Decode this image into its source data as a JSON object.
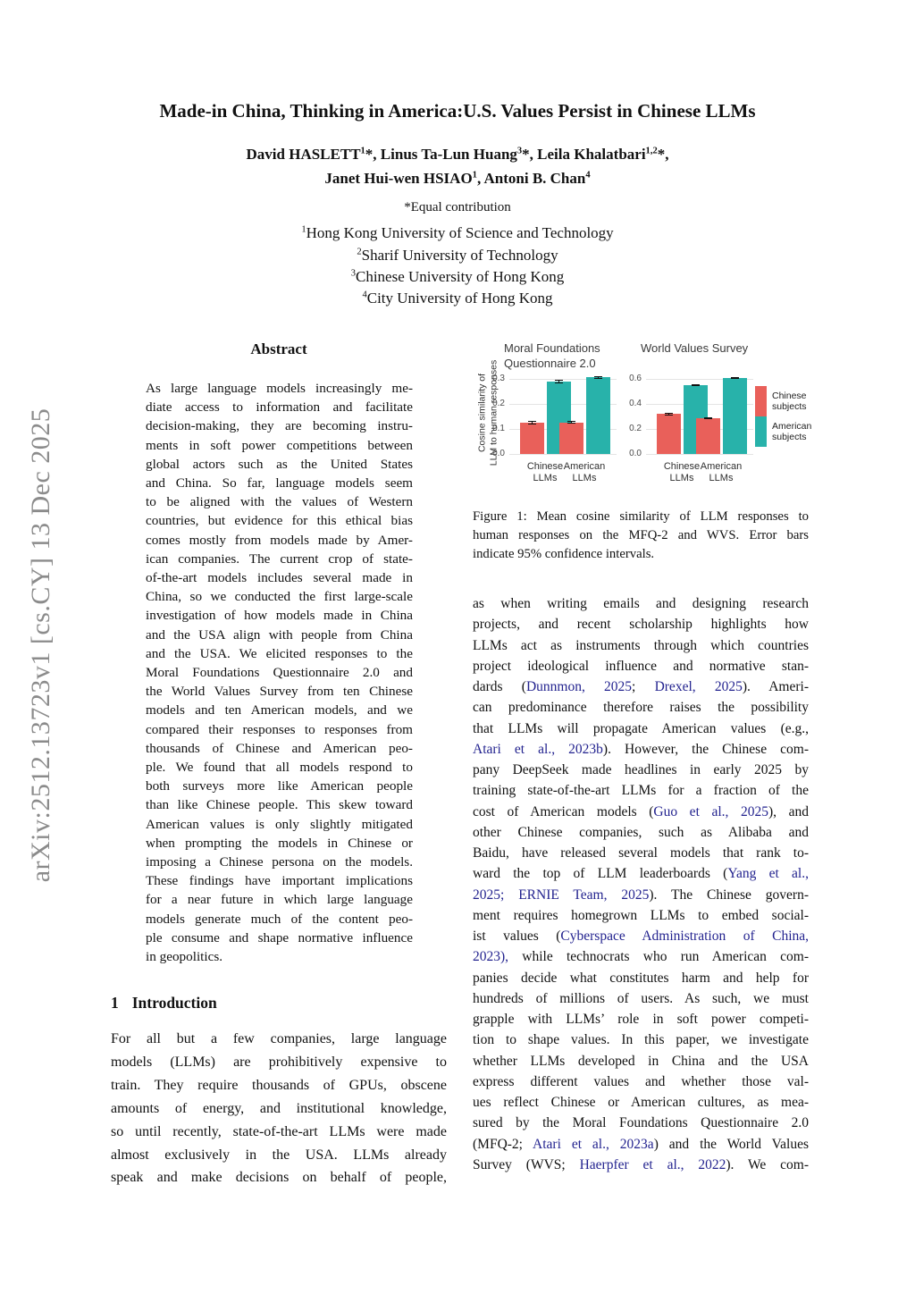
{
  "watermark": "arXiv:2512.13723v1  [cs.CY]  13 Dec 2025",
  "colors": {
    "citation": "#23238f",
    "bar_red": "#e9605a",
    "bar_teal": "#28b2aa"
  },
  "header": {
    "title": "Made-in China, Thinking in America:U.S. Values Persist in Chinese LLMs",
    "author_line1": [
      {
        "t": "David HASLETT"
      },
      {
        "t": "1",
        "sup": true
      },
      {
        "t": "*, Linus Ta-Lun Huang"
      },
      {
        "t": "3",
        "sup": true
      },
      {
        "t": "*, Leila Khalatbari"
      },
      {
        "t": "1,2",
        "sup": true
      },
      {
        "t": "*,"
      }
    ],
    "author_line2": [
      {
        "t": "Janet Hui-wen HSIAO"
      },
      {
        "t": "1",
        "sup": true
      },
      {
        "t": ", Antoni B. Chan"
      },
      {
        "t": "4",
        "sup": true
      }
    ],
    "equal_contribution": "*Equal contribution",
    "affiliations": [
      [
        {
          "t": "1",
          "sup": true
        },
        {
          "t": "Hong Kong University of Science and Technology"
        }
      ],
      [
        {
          "t": "2",
          "sup": true
        },
        {
          "t": "Sharif University of Technology"
        }
      ],
      [
        {
          "t": "3",
          "sup": true
        },
        {
          "t": "Chinese University of Hong Kong"
        }
      ],
      [
        {
          "t": "4",
          "sup": true
        },
        {
          "t": "City University of Hong Kong"
        }
      ]
    ]
  },
  "abstract": {
    "heading": "Abstract",
    "lines": [
      "As large language models increasingly me-",
      "diate access to information and facilitate",
      "decision-making, they are becoming instru-",
      "ments in soft power competitions between",
      "global actors such as the United States",
      "and China.  So far, language models seem",
      "to be aligned with the values of Western",
      "countries, but evidence for this ethical bias",
      "comes mostly from models made by Amer-",
      "ican companies.  The current crop of state-",
      "of-the-art models includes several made in",
      "China, so we conducted the first large-scale",
      "investigation of how models made in China",
      "and the USA align with people from China",
      "and the USA. We elicited responses to the",
      "Moral Foundations Questionnaire 2.0 and",
      "the World Values Survey from ten Chinese",
      "models and ten American models, and we",
      "compared their responses to responses from",
      "thousands of Chinese and American peo-",
      "ple.  We found that all models respond to",
      "both surveys more like American people",
      "than like Chinese people. This skew toward",
      "American values is only slightly mitigated",
      "when prompting the models in Chinese or",
      "imposing a Chinese persona on the models.",
      "These findings have important implications",
      "for a near future in which large language",
      "models generate much of the content peo-",
      "ple consume and shape normative influence",
      "in geopolitics."
    ]
  },
  "introduction": {
    "number": "1",
    "title": "Introduction",
    "lines": [
      "For all but a few companies, large language",
      "models (LLMs) are prohibitively expensive to",
      "train.  They require thousands of GPUs, obscene",
      "amounts of energy, and institutional knowledge,",
      "so until recently, state-of-the-art LLMs were made",
      "almost exclusively in the USA. LLMs already",
      "speak and make decisions on behalf of people,"
    ]
  },
  "right_column": {
    "lines": [
      "as when writing emails and designing research",
      "projects, and recent scholarship highlights how",
      "LLMs act as instruments through which countries",
      "project ideological influence and normative stan-",
      "dards (Dunnmon, 2025; Drexel, 2025).  Ameri-",
      "can predominance therefore raises the possibility",
      "that LLMs will propagate American values (e.g.,",
      "Atari et al., 2023b).  However, the Chinese com-",
      "pany DeepSeek made headlines in early 2025 by",
      "training state-of-the-art LLMs for a fraction of the",
      "cost of American models (Guo et al., 2025), and",
      "other Chinese companies, such as Alibaba and",
      "Baidu, have released several models that rank to-",
      "ward the top of LLM leaderboards (Yang et al.,",
      "2025; ERNIE Team, 2025). The Chinese govern-",
      "ment requires homegrown LLMs to embed social-",
      "ist values (Cyberspace Administration of China,",
      "2023), while technocrats who run American com-",
      "panies decide what constitutes harm and help for",
      "hundreds of millions of users.  As such, we must",
      "grapple with LLMs’ role in soft power competi-",
      "tion to shape values. In this paper, we investigate",
      "whether LLMs developed in China and the USA",
      "express different values and whether those val-",
      "ues reflect Chinese or American cultures, as mea-",
      "sured by the Moral Foundations Questionnaire 2.0",
      "(MFQ-2; Atari et al., 2023a) and the World Values",
      "Survey (WVS; Haerpfer et al., 2022).  We com-"
    ]
  },
  "citations": [
    "Cyberspace Administration of China,",
    "Atari et al., 2023b",
    "Atari et al., 2023a",
    "Haerpfer et al., 2022",
    "ERNIE Team, 2025",
    "Dunnmon, 2025",
    "Drexel, 2025",
    "Guo et al., 2025",
    "Yang et al.,",
    "2025;",
    "2023),"
  ],
  "figure": {
    "caption_lines": [
      "Figure 1: Mean cosine similarity of LLM responses to",
      "human responses on the MFQ-2 and WVS. Error bars",
      "indicate 95% confidence intervals."
    ]
  },
  "chart_data": [
    {
      "type": "bar",
      "title": "Moral Foundations\nQuestionnaire 2.0",
      "ylabel": "Cosine similarity of\nLLM to human responses",
      "xlabel": "",
      "categories": [
        "Chinese\nLLMs",
        "American\nLLMs"
      ],
      "series": [
        {
          "name": "Chinese subjects",
          "color": "#e9605a",
          "values": [
            0.125,
            0.127
          ],
          "errors": [
            0.008,
            0.006
          ]
        },
        {
          "name": "American subjects",
          "color": "#28b2aa",
          "values": [
            0.29,
            0.307
          ],
          "errors": [
            0.007,
            0.005
          ]
        }
      ],
      "yticks": [
        0.0,
        0.1,
        0.2,
        0.3
      ],
      "ylim": [
        0,
        0.33
      ],
      "grid": true,
      "legend_position": "right"
    },
    {
      "type": "bar",
      "title": "World Values Survey",
      "ylabel": "",
      "xlabel": "",
      "categories": [
        "Chinese\nLLMs",
        "American\nLLMs"
      ],
      "series": [
        {
          "name": "Chinese subjects",
          "color": "#e9605a",
          "values": [
            0.32,
            0.285
          ],
          "errors": [
            0.01,
            0.008
          ]
        },
        {
          "name": "American subjects",
          "color": "#28b2aa",
          "values": [
            0.55,
            0.61
          ],
          "errors": [
            0.008,
            0.006
          ]
        }
      ],
      "yticks": [
        0.0,
        0.2,
        0.4,
        0.6
      ],
      "ylim": [
        0,
        0.66
      ],
      "grid": true,
      "legend_position": "right"
    }
  ]
}
